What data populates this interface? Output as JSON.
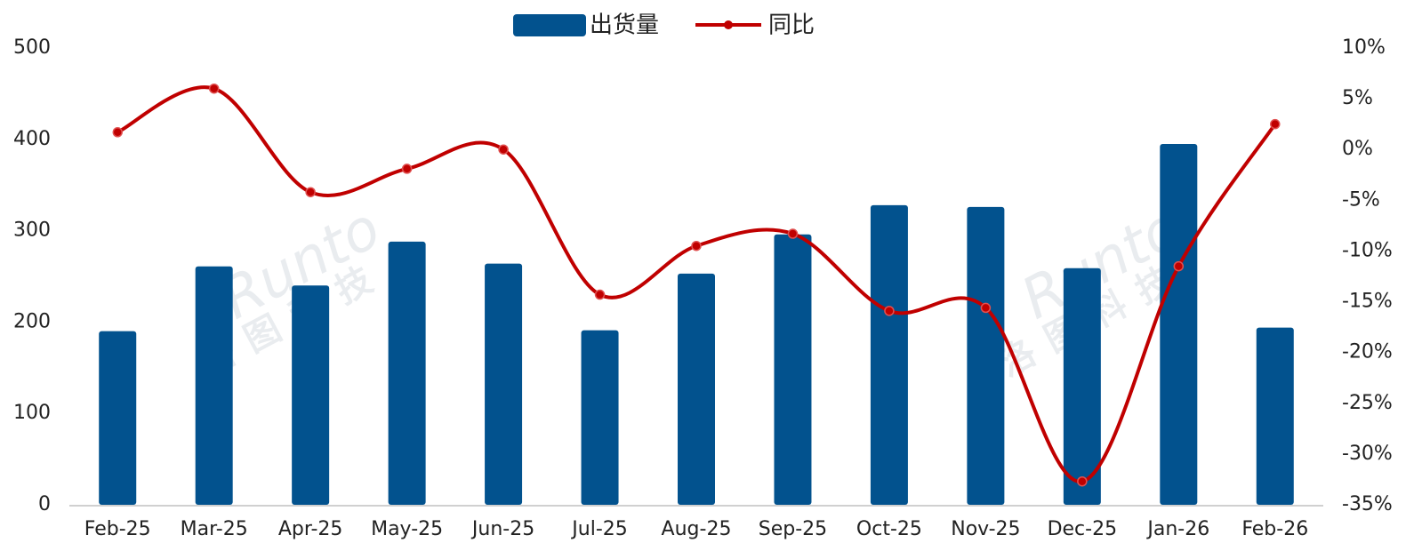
{
  "chart_data": {
    "type": "bar-line",
    "categories": [
      "Feb-25",
      "Mar-25",
      "Apr-25",
      "May-25",
      "Jun-25",
      "Jul-25",
      "Aug-25",
      "Sep-25",
      "Oct-25",
      "Nov-25",
      "Dec-25",
      "Jan-26",
      "Feb-26"
    ],
    "series": [
      {
        "name": "出货量",
        "type": "bar",
        "color": "#02528e",
        "values": [
          190,
          261,
          240,
          288,
          264,
          191,
          253,
          296,
          328,
          326,
          259,
          395,
          194
        ]
      },
      {
        "name": "同比",
        "type": "line",
        "axis": "y2",
        "color": "#c00000",
        "smooth": true,
        "values": [
          1.7,
          6.0,
          -4.2,
          -1.9,
          0,
          -14.3,
          -9.5,
          -8.3,
          -15.9,
          -15.6,
          -32.7,
          -11.5,
          2.5
        ]
      }
    ],
    "ylim": [
      0,
      500
    ],
    "yticks": [
      0,
      100,
      200,
      300,
      400,
      500
    ],
    "y2lim": [
      -35,
      10
    ],
    "y2ticks": [
      {
        "value": -35,
        "label": "-35%"
      },
      {
        "value": -30,
        "label": "-30%"
      },
      {
        "value": -25,
        "label": "-25%"
      },
      {
        "value": -20,
        "label": "-20%"
      },
      {
        "value": -15,
        "label": "-15%"
      },
      {
        "value": -10,
        "label": "-10%"
      },
      {
        "value": -5,
        "label": "-5%"
      },
      {
        "value": 0,
        "label": "0%"
      },
      {
        "value": 5,
        "label": "5%"
      },
      {
        "value": 10,
        "label": "10%"
      }
    ],
    "grid": false,
    "legend": "top",
    "watermark": [
      "Runto",
      "洛图科技"
    ]
  }
}
